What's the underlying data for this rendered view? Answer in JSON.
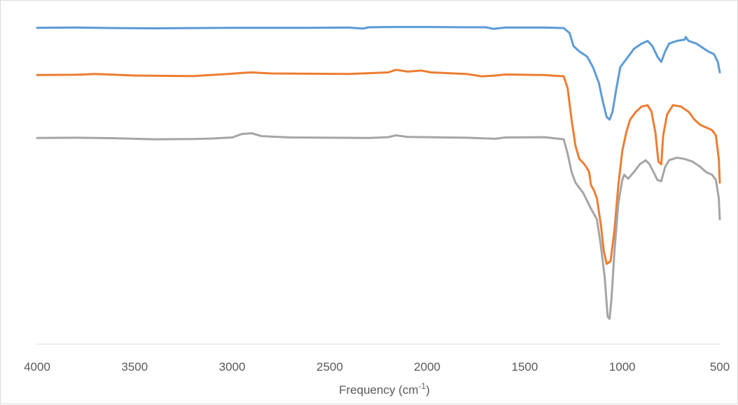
{
  "chart_data": {
    "type": "line",
    "title": "",
    "xlabel_main": "Frequency (cm",
    "xlabel_sup": "-1",
    "xlabel_close": ")",
    "ylabel": "",
    "xlim": [
      4000,
      500
    ],
    "x_reversed": true,
    "y_axis_visible": false,
    "grid": false,
    "legend": "none",
    "x_ticks": [
      4000,
      3500,
      3000,
      2500,
      2000,
      1500,
      1000,
      500
    ],
    "x_tick_labels": [
      "4000",
      "3500",
      "3000",
      "2500",
      "2000",
      "1500",
      "1000",
      "500"
    ],
    "series": [
      {
        "color": "#5b9bd5",
        "points": [
          [
            4000,
            95.0
          ],
          [
            3800,
            95.1
          ],
          [
            3600,
            94.9
          ],
          [
            3400,
            94.8
          ],
          [
            3200,
            94.9
          ],
          [
            3000,
            95.0
          ],
          [
            2800,
            95.0
          ],
          [
            2600,
            95.0
          ],
          [
            2400,
            95.1
          ],
          [
            2330,
            94.7
          ],
          [
            2300,
            95.2
          ],
          [
            2200,
            95.3
          ],
          [
            2000,
            95.3
          ],
          [
            1800,
            95.2
          ],
          [
            1700,
            95.2
          ],
          [
            1660,
            94.6
          ],
          [
            1600,
            95.1
          ],
          [
            1400,
            95.1
          ],
          [
            1300,
            94.9
          ],
          [
            1270,
            93.0
          ],
          [
            1250,
            88.0
          ],
          [
            1220,
            86.0
          ],
          [
            1180,
            84.0
          ],
          [
            1150,
            80.0
          ],
          [
            1120,
            74.0
          ],
          [
            1100,
            67.0
          ],
          [
            1080,
            61.0
          ],
          [
            1065,
            60.0
          ],
          [
            1050,
            63.0
          ],
          [
            1030,
            72.0
          ],
          [
            1010,
            80.0
          ],
          [
            990,
            82.0
          ],
          [
            970,
            84.0
          ],
          [
            940,
            87.0
          ],
          [
            900,
            89.0
          ],
          [
            870,
            90.0
          ],
          [
            845,
            88.0
          ],
          [
            820,
            84.0
          ],
          [
            800,
            82.0
          ],
          [
            780,
            86.0
          ],
          [
            760,
            89.0
          ],
          [
            720,
            90.0
          ],
          [
            680,
            90.5
          ],
          [
            675,
            91.5
          ],
          [
            660,
            90.0
          ],
          [
            620,
            89.0
          ],
          [
            580,
            87.0
          ],
          [
            560,
            86.0
          ],
          [
            530,
            85.0
          ],
          [
            510,
            82.0
          ],
          [
            500,
            78.0
          ]
        ]
      },
      {
        "color": "#ed7d31",
        "points": [
          [
            4000,
            77.0
          ],
          [
            3800,
            77.1
          ],
          [
            3700,
            77.4
          ],
          [
            3500,
            76.8
          ],
          [
            3200,
            76.6
          ],
          [
            3000,
            77.5
          ],
          [
            2950,
            77.8
          ],
          [
            2900,
            78.0
          ],
          [
            2800,
            77.6
          ],
          [
            2600,
            77.5
          ],
          [
            2400,
            77.4
          ],
          [
            2200,
            78.0
          ],
          [
            2160,
            79.0
          ],
          [
            2100,
            78.3
          ],
          [
            2030,
            78.7
          ],
          [
            1980,
            78.0
          ],
          [
            1800,
            77.4
          ],
          [
            1720,
            76.5
          ],
          [
            1650,
            76.8
          ],
          [
            1600,
            77.2
          ],
          [
            1400,
            77.0
          ],
          [
            1300,
            76.5
          ],
          [
            1280,
            72.0
          ],
          [
            1260,
            60.0
          ],
          [
            1240,
            50.0
          ],
          [
            1220,
            45.0
          ],
          [
            1200,
            43.5
          ],
          [
            1185,
            42.0
          ],
          [
            1170,
            40.0
          ],
          [
            1160,
            35.0
          ],
          [
            1145,
            33.0
          ],
          [
            1130,
            30.0
          ],
          [
            1110,
            20.0
          ],
          [
            1095,
            10.0
          ],
          [
            1080,
            5.0
          ],
          [
            1060,
            6.0
          ],
          [
            1040,
            18.0
          ],
          [
            1020,
            35.0
          ],
          [
            1000,
            48.0
          ],
          [
            980,
            55.0
          ],
          [
            960,
            60.0
          ],
          [
            930,
            63.0
          ],
          [
            900,
            65.0
          ],
          [
            870,
            65.5
          ],
          [
            850,
            63.0
          ],
          [
            830,
            55.0
          ],
          [
            815,
            44.0
          ],
          [
            800,
            43.0
          ],
          [
            790,
            54.0
          ],
          [
            770,
            62.0
          ],
          [
            740,
            65.5
          ],
          [
            700,
            65.0
          ],
          [
            660,
            63.0
          ],
          [
            630,
            60.0
          ],
          [
            600,
            58.0
          ],
          [
            570,
            57.0
          ],
          [
            540,
            56.0
          ],
          [
            520,
            54.0
          ],
          [
            505,
            45.0
          ],
          [
            500,
            36.0
          ]
        ]
      },
      {
        "color": "#a5a5a5",
        "points": [
          [
            4000,
            53.0
          ],
          [
            3800,
            53.1
          ],
          [
            3600,
            52.9
          ],
          [
            3400,
            52.5
          ],
          [
            3200,
            52.6
          ],
          [
            3100,
            52.8
          ],
          [
            3000,
            53.2
          ],
          [
            2950,
            54.5
          ],
          [
            2900,
            54.8
          ],
          [
            2850,
            53.7
          ],
          [
            2700,
            53.2
          ],
          [
            2500,
            53.1
          ],
          [
            2300,
            53.0
          ],
          [
            2200,
            53.3
          ],
          [
            2160,
            54.0
          ],
          [
            2100,
            53.4
          ],
          [
            2000,
            53.3
          ],
          [
            1800,
            53.1
          ],
          [
            1650,
            52.7
          ],
          [
            1600,
            53.2
          ],
          [
            1400,
            53.3
          ],
          [
            1300,
            52.5
          ],
          [
            1280,
            47.0
          ],
          [
            1260,
            40.0
          ],
          [
            1240,
            36.0
          ],
          [
            1220,
            34.0
          ],
          [
            1200,
            32.0
          ],
          [
            1180,
            29.0
          ],
          [
            1160,
            26.0
          ],
          [
            1130,
            22.0
          ],
          [
            1110,
            12.0
          ],
          [
            1090,
            0.0
          ],
          [
            1075,
            -15.0
          ],
          [
            1065,
            -16.0
          ],
          [
            1055,
            -8.0
          ],
          [
            1040,
            10.0
          ],
          [
            1020,
            28.0
          ],
          [
            1000,
            37.0
          ],
          [
            990,
            39.0
          ],
          [
            970,
            37.5
          ],
          [
            940,
            40.0
          ],
          [
            910,
            43.0
          ],
          [
            880,
            44.5
          ],
          [
            860,
            43.0
          ],
          [
            840,
            40.0
          ],
          [
            820,
            37.0
          ],
          [
            800,
            36.5
          ],
          [
            780,
            42.0
          ],
          [
            760,
            44.5
          ],
          [
            720,
            45.5
          ],
          [
            680,
            45.0
          ],
          [
            640,
            44.0
          ],
          [
            600,
            42.0
          ],
          [
            570,
            40.0
          ],
          [
            540,
            39.0
          ],
          [
            520,
            37.0
          ],
          [
            505,
            30.0
          ],
          [
            500,
            22.0
          ]
        ]
      }
    ]
  }
}
